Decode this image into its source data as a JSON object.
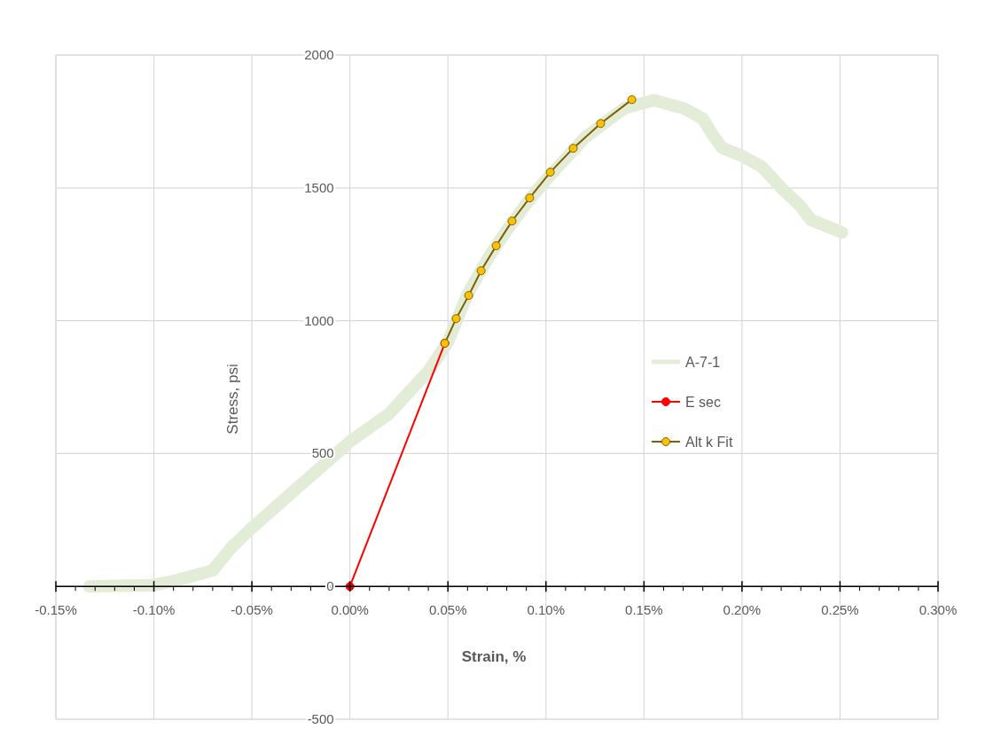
{
  "chart_data": {
    "type": "line",
    "xlabel": "Strain, %",
    "ylabel": "Stress, psi",
    "xlim": [
      -0.15,
      0.3
    ],
    "ylim": [
      -500,
      2000
    ],
    "xticks": [
      {
        "value": -0.15,
        "label": "-0.15%"
      },
      {
        "value": -0.1,
        "label": "-0.10%"
      },
      {
        "value": -0.05,
        "label": "-0.05%"
      },
      {
        "value": 0,
        "label": "0.00%"
      },
      {
        "value": 0.05,
        "label": "0.05%"
      },
      {
        "value": 0.1,
        "label": "0.10%"
      },
      {
        "value": 0.15,
        "label": "0.15%"
      },
      {
        "value": 0.2,
        "label": "0.20%"
      },
      {
        "value": 0.25,
        "label": "0.25%"
      },
      {
        "value": 0.3,
        "label": "0.30%"
      }
    ],
    "yticks": [
      -500,
      0,
      500,
      1000,
      1500,
      2000
    ],
    "grid": true,
    "legend": "right",
    "series": [
      {
        "name": "A-7-1",
        "color": "#e2ecd6",
        "marker": "none",
        "x": [
          -0.133,
          -0.1,
          -0.09,
          -0.07,
          -0.06,
          -0.05,
          -0.03,
          -0.01,
          0,
          0.02,
          0.04,
          0.05,
          0.06,
          0.07,
          0.08,
          0.09,
          0.1,
          0.12,
          0.14,
          0.155,
          0.17,
          0.18,
          0.185,
          0.19,
          0.2,
          0.21,
          0.22,
          0.23,
          0.235,
          0.245,
          0.251
        ],
        "values": [
          0,
          5,
          20,
          60,
          150,
          220,
          350,
          480,
          545,
          650,
          810,
          920,
          1100,
          1230,
          1340,
          1440,
          1530,
          1690,
          1800,
          1830,
          1800,
          1760,
          1700,
          1650,
          1620,
          1580,
          1500,
          1430,
          1380,
          1350,
          1332
        ]
      },
      {
        "name": "E sec",
        "color": "#ff0000",
        "marker": "circle",
        "x": [
          0,
          0.0484
        ],
        "values": [
          0,
          915
        ]
      },
      {
        "name": "Alt k Fit",
        "color": "#7f6000",
        "colors": [
          "#ffc000",
          "#ffc000",
          "#ffc000",
          "#ffc000",
          "#ffc000",
          "#ffc000",
          "#ffc000",
          "#ffc000",
          "#ffc000",
          "#ffc000",
          "#ffc000"
        ],
        "marker": "circle",
        "x": [
          0.0484,
          0.0542,
          0.0606,
          0.0669,
          0.0746,
          0.0827,
          0.0917,
          0.1022,
          0.1139,
          0.1279,
          0.1438
        ],
        "values": [
          915,
          1008,
          1095,
          1188,
          1282,
          1375,
          1462,
          1559,
          1649,
          1742,
          1832
        ]
      }
    ]
  }
}
